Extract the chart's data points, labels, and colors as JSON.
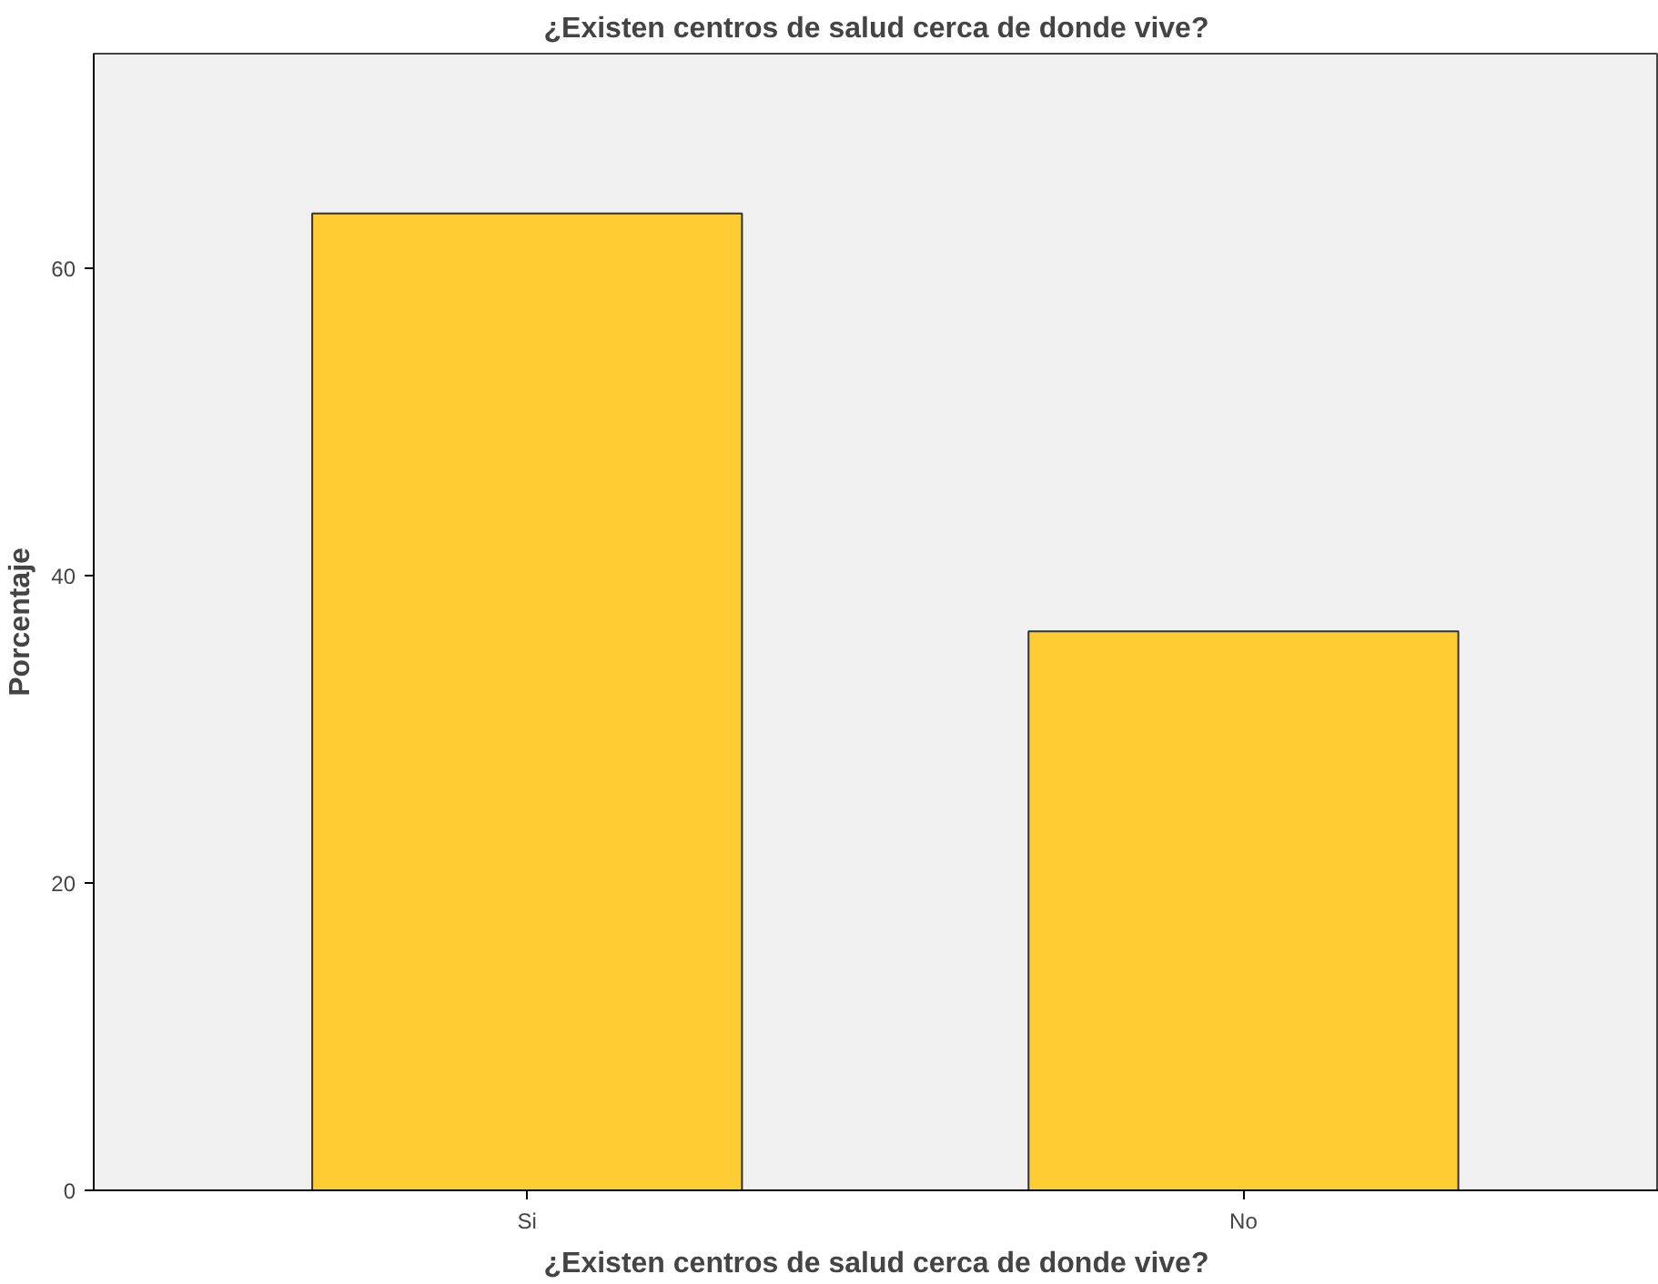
{
  "chart_data": {
    "type": "bar",
    "title": "¿Existen centros de salud cerca de donde vive?",
    "xlabel": "¿Existen centros de salud cerca de donde vive?",
    "ylabel": "Porcentaje",
    "categories": [
      "Si",
      "No"
    ],
    "values": [
      63.6,
      36.4
    ],
    "color": "#ffcc33",
    "ylim": [
      0,
      74
    ],
    "yticks": [
      0,
      20,
      40,
      60
    ],
    "grid": false
  }
}
